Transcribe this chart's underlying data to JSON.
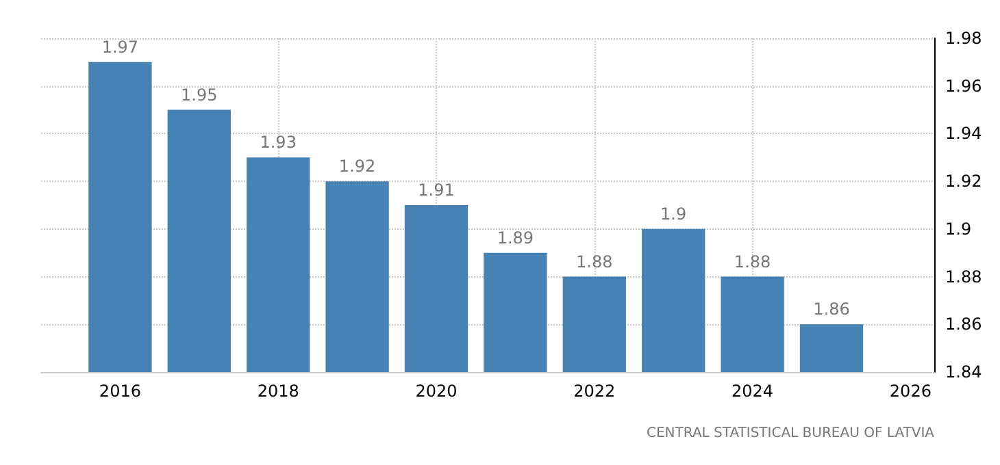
{
  "chart_data": {
    "type": "bar",
    "x": [
      2016,
      2017,
      2018,
      2019,
      2020,
      2021,
      2022,
      2023,
      2024,
      2025
    ],
    "values": [
      1.97,
      1.95,
      1.93,
      1.92,
      1.91,
      1.89,
      1.88,
      1.9,
      1.88,
      1.86
    ],
    "color": "#4682b4",
    "xlim": [
      2015,
      2026.3
    ],
    "xticks": [
      2016,
      2018,
      2020,
      2022,
      2024,
      2026
    ],
    "ylim": [
      1.84,
      1.98
    ],
    "yticks": [
      1.84,
      1.86,
      1.88,
      1.9,
      1.92,
      1.94,
      1.96,
      1.98
    ],
    "grid": true,
    "data_labels": true,
    "annotations": [
      "CENTRAL STATISTICAL BUREAU OF LATVIA"
    ]
  }
}
